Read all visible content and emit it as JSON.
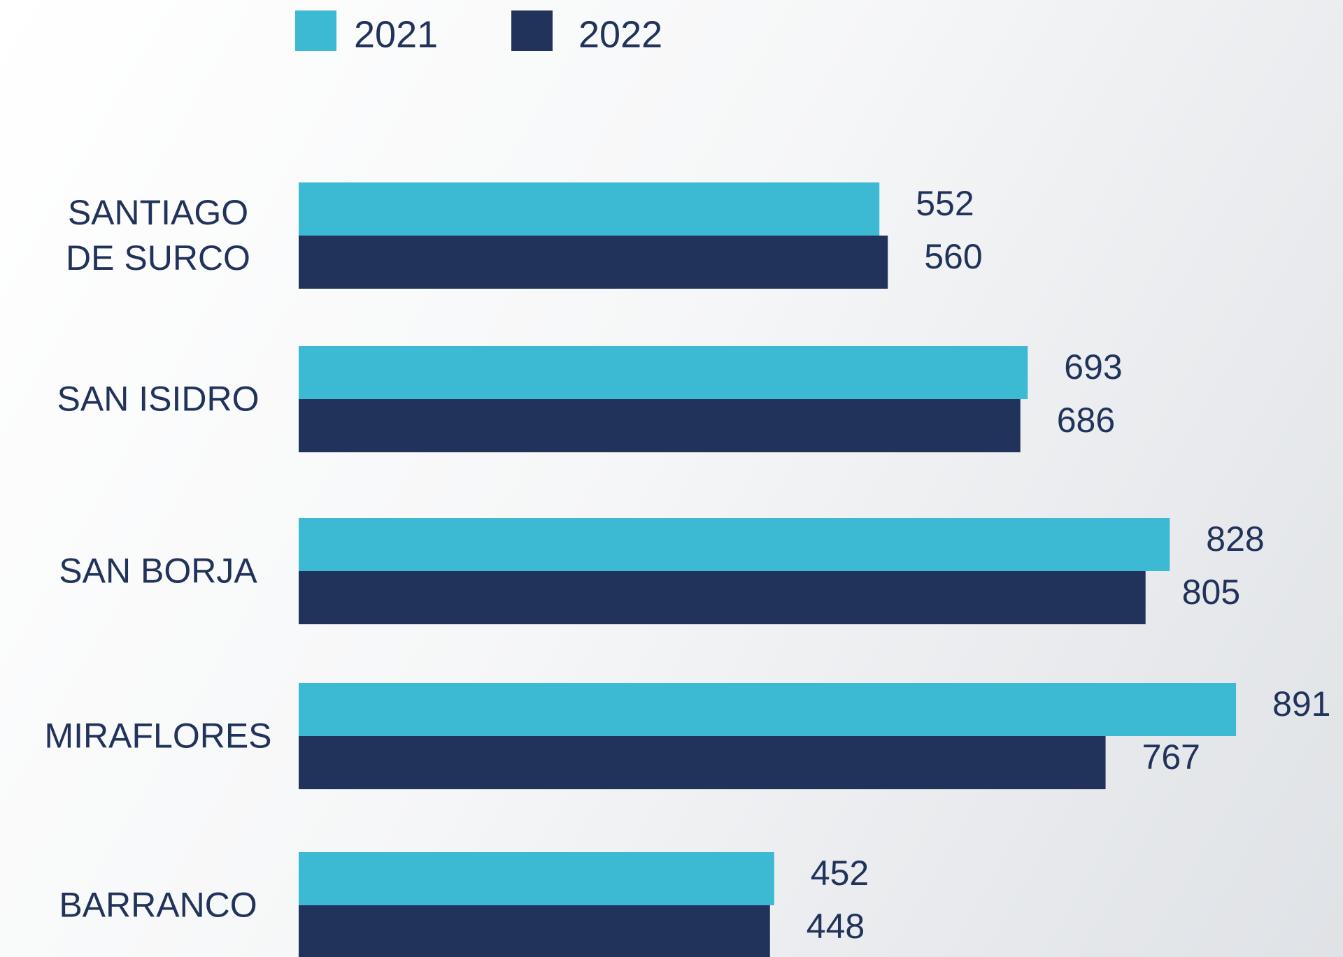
{
  "chart_data": {
    "type": "bar",
    "orientation": "horizontal",
    "categories": [
      "SANTIAGO DE SURCO",
      "SAN ISIDRO",
      "SAN BORJA",
      "MIRAFLORES",
      "BARRANCO"
    ],
    "series": [
      {
        "name": "2021",
        "color": "#3cb9d3",
        "values": [
          552,
          693,
          828,
          891,
          452
        ]
      },
      {
        "name": "2022",
        "color": "#21335b",
        "values": [
          560,
          686,
          805,
          767,
          448
        ]
      }
    ]
  }
}
